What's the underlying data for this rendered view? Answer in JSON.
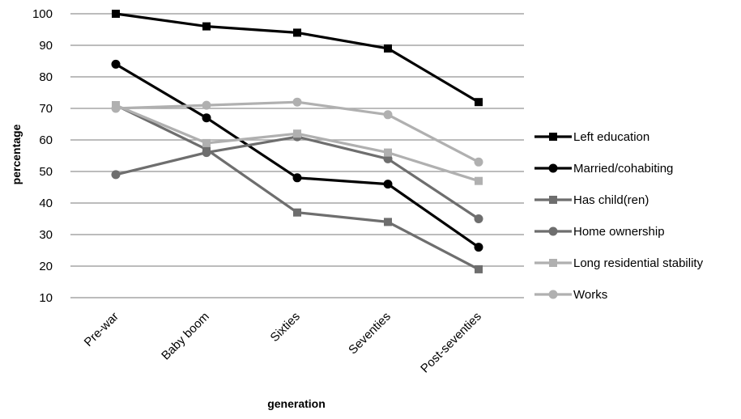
{
  "chart_data": {
    "type": "line",
    "title": "",
    "xlabel": "generation",
    "ylabel": "percentage",
    "ylim": [
      10,
      100
    ],
    "yticks": [
      10,
      20,
      30,
      40,
      50,
      60,
      70,
      80,
      90,
      100
    ],
    "grid": "horizontal",
    "legend_position": "right",
    "categories": [
      "Pre-war",
      "Baby boom",
      "Sixties",
      "Seventies",
      "Post-seventies"
    ],
    "series": [
      {
        "name": "Left education",
        "values": [
          100,
          96,
          94,
          89,
          72
        ],
        "color": "#000000",
        "marker": "square"
      },
      {
        "name": "Married/cohabiting",
        "values": [
          84,
          67,
          48,
          46,
          26
        ],
        "color": "#000000",
        "marker": "circle"
      },
      {
        "name": "Has child(ren)",
        "values": [
          71,
          57,
          37,
          34,
          19
        ],
        "color": "#6e6e6e",
        "marker": "square"
      },
      {
        "name": "Home ownership",
        "values": [
          49,
          56,
          61,
          54,
          35
        ],
        "color": "#6e6e6e",
        "marker": "circle"
      },
      {
        "name": "Long residential stability",
        "values": [
          71,
          59,
          62,
          56,
          47
        ],
        "color": "#b0b0b0",
        "marker": "square"
      },
      {
        "name": "Works",
        "values": [
          70,
          71,
          72,
          68,
          53
        ],
        "color": "#b0b0b0",
        "marker": "circle"
      }
    ]
  }
}
